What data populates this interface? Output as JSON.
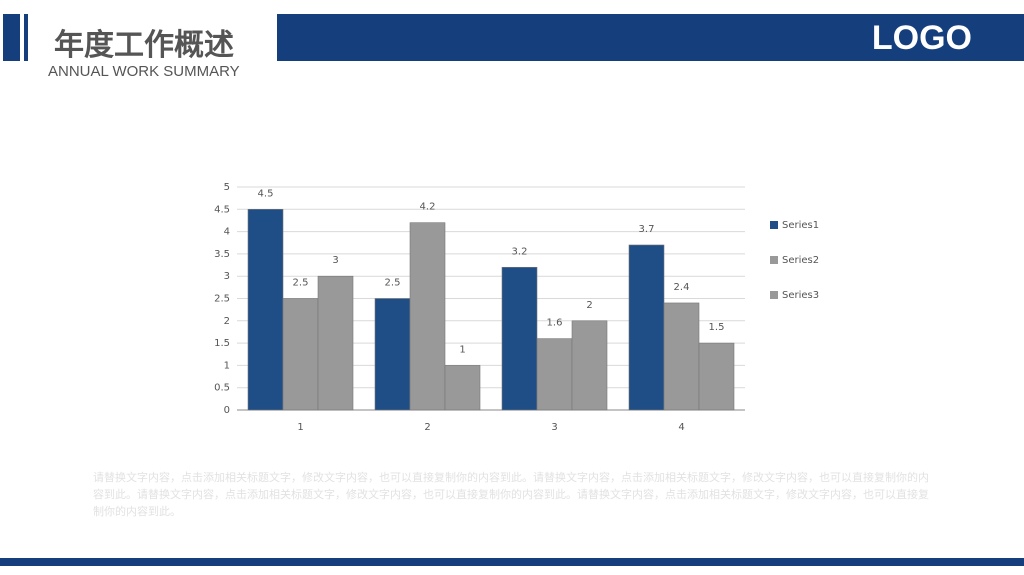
{
  "header": {
    "title": "年度工作概述",
    "subtitle": "ANNUAL WORK SUMMARY",
    "logo": "LOGO"
  },
  "chart_data": {
    "type": "bar",
    "categories": [
      "1",
      "2",
      "3",
      "4"
    ],
    "series": [
      {
        "name": "Series1",
        "color": "#1f4e86",
        "values": [
          4.5,
          2.5,
          3.2,
          3.7
        ]
      },
      {
        "name": "Series2",
        "color": "#999999",
        "values": [
          2.5,
          4.2,
          1.6,
          2.4
        ]
      },
      {
        "name": "Series3",
        "color": "#999999",
        "values": [
          3,
          1,
          2,
          1.5
        ]
      }
    ],
    "ylim": [
      0,
      5
    ],
    "yticks": [
      0,
      0.5,
      1,
      1.5,
      2,
      2.5,
      3,
      3.5,
      4,
      4.5,
      5
    ],
    "grid": true,
    "legend": "right",
    "data_labels": true
  },
  "body": "请替换文字内容，点击添加相关标题文字，修改文字内容，也可以直接复制你的内容到此。请替换文字内容，点击添加相关标题文字，修改文字内容，也可以直接复制你的内容到此。请替换文字内容，点击添加相关标题文字，修改文字内容，也可以直接复制你的内容到此。请替换文字内容，点击添加相关标题文字，修改文字内容，也可以直接复制你的内容到此。"
}
